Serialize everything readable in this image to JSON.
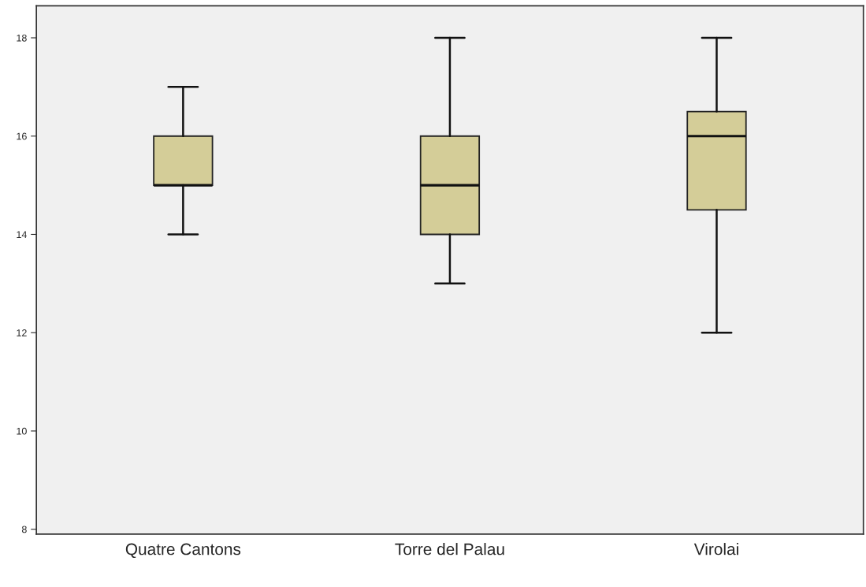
{
  "chart_data": {
    "type": "box",
    "categories": [
      "Quatre Cantons",
      "Torre del Palau",
      "Virolai"
    ],
    "boxes": [
      {
        "low": 14,
        "q1": 15,
        "median": 15,
        "q3": 16,
        "high": 17
      },
      {
        "low": 13,
        "q1": 14,
        "median": 15,
        "q3": 16,
        "high": 18
      },
      {
        "low": 12,
        "q1": 14.5,
        "median": 16,
        "q3": 16.5,
        "high": 18
      }
    ],
    "color": "#d4cd98",
    "ylim": [
      7.9,
      18.65
    ],
    "yticks": [
      8,
      10,
      12,
      14,
      16,
      18
    ],
    "grid": false
  }
}
